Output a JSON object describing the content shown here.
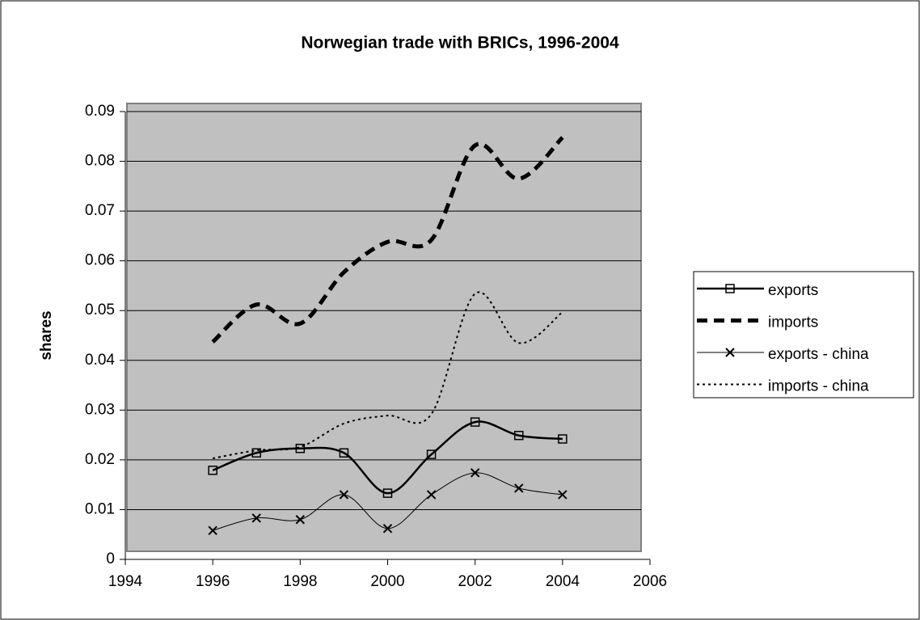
{
  "chart_data": {
    "type": "line",
    "title": "Norwegian trade with BRICs, 1996-2004",
    "y_label": "shares",
    "x": [
      1996,
      1997,
      1998,
      1999,
      2000,
      2001,
      2002,
      2003,
      2004
    ],
    "series": [
      {
        "name": "exports",
        "color": "#000000",
        "values": [
          0.0179,
          0.0214,
          0.0223,
          0.0214,
          0.0133,
          0.0211,
          0.0276,
          0.0249,
          0.0242
        ]
      },
      {
        "name": "imports",
        "color": "#000000",
        "values": [
          0.0437,
          0.0512,
          0.0474,
          0.0577,
          0.0638,
          0.0642,
          0.0832,
          0.0765,
          0.0848
        ]
      },
      {
        "name": "exports - china",
        "color": "#000000",
        "values": [
          0.0058,
          0.0083,
          0.008,
          0.013,
          0.0062,
          0.013,
          0.0174,
          0.0143,
          0.013
        ]
      },
      {
        "name": "imports - china",
        "color": "#000000",
        "values": [
          0.0203,
          0.0219,
          0.0226,
          0.0273,
          0.0289,
          0.0292,
          0.0534,
          0.0435,
          0.0497
        ]
      }
    ],
    "xlim": [
      1994,
      2006
    ],
    "xticks": [
      1994,
      1996,
      1998,
      2000,
      2002,
      2004,
      2006
    ],
    "ylim": [
      0,
      0.09
    ],
    "yticks": [
      0,
      0.01,
      0.02,
      0.03,
      0.04,
      0.05,
      0.06,
      0.07,
      0.08,
      0.09
    ],
    "grid": true,
    "legend": "right"
  }
}
